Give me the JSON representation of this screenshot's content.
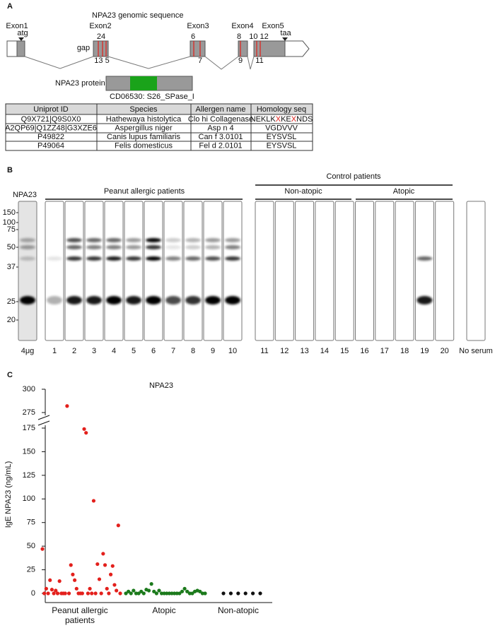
{
  "panel_a": {
    "label": "A",
    "title": "NPA23 genomic sequence",
    "exons": [
      "Exon1",
      "Exon2",
      "Exon3",
      "Exon4",
      "Exon5"
    ],
    "start_codon": "atg",
    "stop_codon": "taa",
    "gap": "gap",
    "sites_top": [
      "24",
      "6",
      "8",
      "10 12"
    ],
    "sites_bottom": [
      "13 5",
      "7",
      "9",
      "11"
    ],
    "protein_label": "NPA23 protein",
    "domain": "CD06530: S26_SPase_I",
    "table": {
      "header": [
        "Uniprot ID",
        "Species",
        "Allergen name",
        "Homology seq"
      ],
      "rows": [
        [
          "Q9X721|Q9S0X0",
          "Hathewaya histolytica",
          "Clo hi Collagenase",
          "NEKLKXKEXNDS"
        ],
        [
          "A2QP69|Q1ZZ48|G3XZE6",
          "Aspergillus niger",
          "Asp n 4",
          "VGDVVV"
        ],
        [
          "P49822",
          "Canis lupus familiaris",
          "Can f 3.0101",
          "EYSVSL"
        ],
        [
          "P49064",
          "Felis domesticus",
          "Fel d 2.0101",
          "EYSVSL"
        ]
      ]
    }
  },
  "panel_b": {
    "label": "B",
    "control_header": "Control patients",
    "groups": [
      "Peanut allergic patients",
      "Non-atopic",
      "Atopic"
    ],
    "antigen": "NPA23",
    "markers": [
      150,
      100,
      75,
      50,
      37,
      25,
      20
    ],
    "lanes": [
      "4μg",
      "1",
      "2",
      "3",
      "4",
      "5",
      "6",
      "7",
      "8",
      "9",
      "10",
      "11",
      "12",
      "13",
      "14",
      "15",
      "16",
      "17",
      "18",
      "19",
      "20",
      "No serum"
    ]
  },
  "chart_data": {
    "type": "scatter",
    "label": "C",
    "title": "NPA23",
    "y_label": "IgE NPA23 (ng/mL)",
    "categories": [
      "Peanut allergic\npatients",
      "Atopic",
      "Non-atopic"
    ],
    "series": [
      {
        "color": "#e3201c",
        "values": [
          47,
          0,
          5,
          0,
          14,
          4,
          0,
          3,
          0,
          13,
          0,
          0,
          0,
          282,
          0,
          30,
          20,
          14,
          5,
          0,
          0,
          0,
          174,
          170,
          0,
          5,
          0,
          98,
          0,
          31,
          15,
          0,
          42,
          30,
          5,
          0,
          20,
          29,
          9,
          3,
          72,
          0
        ]
      },
      {
        "color": "#1c7a1c",
        "values": [
          0,
          2,
          0,
          3,
          0,
          0,
          2,
          0,
          4,
          3,
          10,
          2,
          0,
          3,
          0,
          0,
          0,
          0,
          0,
          0,
          0,
          0,
          2,
          5,
          2,
          0,
          0,
          2,
          3,
          2,
          0,
          0
        ]
      },
      {
        "color": "#111111",
        "values": [
          0,
          0,
          0,
          0,
          0,
          0
        ]
      }
    ],
    "ylim": [
      0,
      300
    ],
    "axis_break": [
      175,
      275
    ],
    "yticks": [
      0,
      25,
      50,
      75,
      100,
      125,
      150,
      175,
      275,
      300
    ]
  }
}
